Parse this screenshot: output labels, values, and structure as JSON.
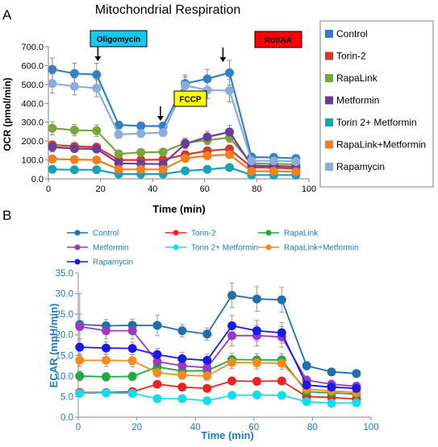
{
  "chart_data": [
    {
      "panel_letter": "A",
      "type": "line",
      "title": "Mitochondrial Respiration",
      "xlabel": "Time (min)",
      "ylabel": "OCR (pmol/min)",
      "xlim": [
        0,
        100
      ],
      "ylim": [
        0,
        700
      ],
      "xticks": [
        "0",
        "20",
        "40",
        "60",
        "80",
        "100"
      ],
      "yticks": [
        "0.0",
        "100.0",
        "200.0",
        "300.0",
        "400.0",
        "500.0",
        "600.0",
        "700.0"
      ],
      "grid": false,
      "legend_position": "right",
      "x": [
        1.5,
        10,
        18.5,
        27,
        35.5,
        44,
        52.5,
        61,
        69.5,
        78,
        86.5,
        95
      ],
      "annotations": [
        {
          "text": "Oligomycin",
          "x": 19,
          "fill": "#14c8ee"
        },
        {
          "text": "FCCP",
          "x": 43,
          "fill": "#ffff00"
        },
        {
          "text": "Rot/AA",
          "x": 67,
          "fill": "#ff0000"
        }
      ],
      "series": [
        {
          "name": "Control",
          "color": "#3380c4",
          "values": [
            580,
            558,
            552,
            285,
            280,
            279,
            505,
            530,
            562,
            115,
            113,
            108
          ],
          "errors": [
            60,
            55,
            60,
            20,
            20,
            20,
            45,
            50,
            65,
            20,
            20,
            15
          ]
        },
        {
          "name": "Torin-2",
          "color": "#d33a2f",
          "values": [
            180,
            172,
            168,
            100,
            100,
            102,
            128,
            148,
            158,
            60,
            58,
            54
          ],
          "errors": [
            20,
            18,
            18,
            10,
            10,
            10,
            20,
            20,
            20,
            10,
            10,
            10
          ]
        },
        {
          "name": "RapaLink",
          "color": "#79a63a",
          "values": [
            268,
            258,
            255,
            132,
            140,
            142,
            190,
            205,
            218,
            82,
            80,
            76
          ],
          "errors": [
            35,
            30,
            30,
            15,
            15,
            15,
            25,
            25,
            25,
            12,
            12,
            10
          ]
        },
        {
          "name": "Metformin",
          "color": "#6c3c99",
          "values": [
            168,
            160,
            158,
            82,
            80,
            78,
            185,
            222,
            248,
            70,
            68,
            64
          ],
          "errors": [
            25,
            20,
            20,
            12,
            12,
            12,
            25,
            30,
            35,
            10,
            10,
            10
          ]
        },
        {
          "name": "Torin 2+ Metformin",
          "color": "#1aa3b7",
          "values": [
            50,
            48,
            48,
            25,
            25,
            25,
            42,
            50,
            60,
            20,
            20,
            20
          ],
          "errors": [
            8,
            8,
            8,
            5,
            5,
            5,
            8,
            8,
            10,
            5,
            5,
            5
          ]
        },
        {
          "name": "RapaLink+Metformin",
          "color": "#f0801e",
          "values": [
            105,
            102,
            100,
            50,
            50,
            50,
            108,
            122,
            128,
            40,
            40,
            38
          ],
          "errors": [
            15,
            12,
            12,
            8,
            8,
            8,
            15,
            15,
            18,
            8,
            8,
            8
          ]
        },
        {
          "name": "Rapamycin",
          "color": "#8cacdc",
          "values": [
            505,
            490,
            480,
            235,
            240,
            245,
            495,
            470,
            468,
            95,
            95,
            92
          ],
          "errors": [
            50,
            45,
            45,
            20,
            20,
            20,
            45,
            45,
            60,
            15,
            15,
            12
          ]
        }
      ]
    },
    {
      "panel_letter": "B",
      "type": "line",
      "title": "",
      "xlabel": "Time (min)",
      "ylabel": "ECAR (mpH/min)",
      "xlim": [
        0,
        100
      ],
      "ylim": [
        0,
        35
      ],
      "xticks": [
        "0",
        "20",
        "40",
        "60",
        "80",
        "100"
      ],
      "yticks": [
        "0.0",
        "5.0",
        "10.0",
        "15.0",
        "20.0",
        "25.0",
        "30.0",
        "35.0"
      ],
      "grid": false,
      "legend_position": "top",
      "x": [
        0.5,
        9.5,
        18.5,
        27,
        35.5,
        44,
        52.5,
        61,
        69.5,
        78,
        86.5,
        95
      ],
      "series": [
        {
          "name": "Control",
          "color": "#1f6fad",
          "values": [
            22.5,
            22.2,
            22.3,
            22.3,
            21,
            20.2,
            29.6,
            28.7,
            28.5,
            12.5,
            11,
            10.6
          ],
          "errors": [
            7.5,
            1.5,
            1.5,
            2.5,
            1.5,
            1.5,
            3,
            3,
            3,
            1,
            0.8,
            0.8
          ]
        },
        {
          "name": "Torin-2",
          "color": "#ee2222",
          "values": [
            6,
            6,
            6.2,
            8,
            7.3,
            7,
            8.8,
            8.7,
            8.8,
            5,
            4.8,
            4.4
          ],
          "errors": [
            0.8,
            0.8,
            0.8,
            0.8,
            0.8,
            0.8,
            0.8,
            0.8,
            0.8,
            0.5,
            0.5,
            0.5
          ]
        },
        {
          "name": "RapaLink",
          "color": "#1faa3c",
          "values": [
            10,
            9.8,
            9.9,
            12.2,
            11.2,
            11.3,
            14,
            13.9,
            13.9,
            6.2,
            5.9,
            5.6
          ],
          "errors": [
            1.2,
            1,
            1,
            1.2,
            1,
            1,
            1.5,
            1.5,
            1.5,
            0.8,
            0.8,
            0.8
          ]
        },
        {
          "name": "Metformin",
          "color": "#9a3bbf",
          "values": [
            22,
            21,
            21,
            13.5,
            12.5,
            12,
            19.8,
            19.8,
            19.5,
            9,
            8,
            7.5
          ],
          "errors": [
            3,
            2,
            2,
            1.5,
            1.5,
            1.5,
            2.5,
            2.5,
            2.5,
            1,
            1,
            1
          ]
        },
        {
          "name": "Torin 2+ Metformin",
          "color": "#14dcef",
          "values": [
            5.8,
            5.9,
            5.8,
            4.5,
            4.5,
            4,
            5.3,
            5.4,
            5.3,
            3.8,
            3.4,
            3.5
          ],
          "errors": [
            0.6,
            0.6,
            0.6,
            0.5,
            0.5,
            0.5,
            0.5,
            0.5,
            0.5,
            0.4,
            0.4,
            0.4
          ]
        },
        {
          "name": "RapaLink+Metformin",
          "color": "#f88a1e",
          "values": [
            13.8,
            13.8,
            13.7,
            10.8,
            10.2,
            10,
            13.3,
            13.2,
            13.1,
            6.8,
            6.4,
            6
          ],
          "errors": [
            1.5,
            1.5,
            1.5,
            1,
            1,
            1,
            1.5,
            1.5,
            1.5,
            0.8,
            0.8,
            0.8
          ]
        },
        {
          "name": "Rapamycin",
          "color": "#1a1ae6",
          "values": [
            17,
            16.8,
            16.7,
            15.2,
            14.2,
            13.8,
            22.2,
            21,
            20.5,
            7.8,
            7.3,
            7
          ],
          "errors": [
            2,
            1.5,
            1.5,
            1.5,
            1.5,
            1.5,
            2.5,
            2.5,
            2.5,
            1,
            1,
            1
          ]
        }
      ]
    }
  ]
}
